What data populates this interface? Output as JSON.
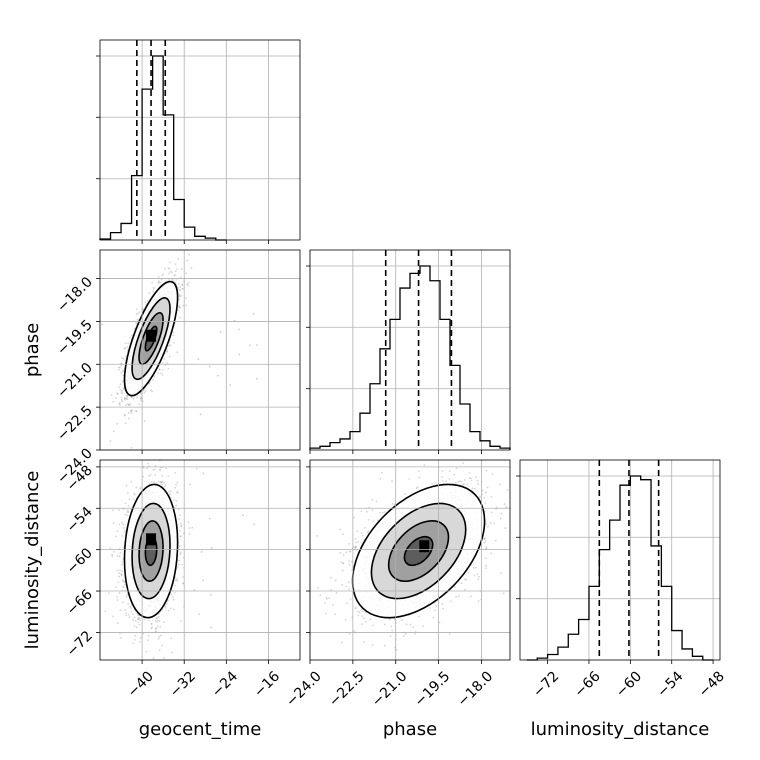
{
  "chart_data": {
    "type": "corner",
    "parameters": [
      "geocent_time",
      "phase",
      "luminosity_distance"
    ],
    "axes": {
      "geocent_time": {
        "label": "geocent_time",
        "range": [
          -48,
          -10
        ],
        "ticks": [
          -40,
          -32,
          -24,
          -16
        ],
        "tick_labels": [
          "−40",
          "−32",
          "−24",
          "−16"
        ]
      },
      "phase": {
        "label": "phase",
        "range": [
          -24.0,
          -17.0
        ],
        "ticks": [
          -24.0,
          -22.5,
          -21.0,
          -19.5,
          -18.0
        ],
        "tick_labels": [
          "−24.0",
          "−22.5",
          "−21.0",
          "−19.5",
          "−18.0"
        ]
      },
      "luminosity_distance": {
        "label": "luminosity_distance",
        "range": [
          -76,
          -47
        ],
        "ticks": [
          -72,
          -66,
          -60,
          -54,
          -48
        ],
        "tick_labels": [
          "−72",
          "−66",
          "−60",
          "−54",
          "−48"
        ]
      }
    },
    "marginals": [
      {
        "parameter": "geocent_time",
        "bin_edges": [
          -48,
          -46,
          -44,
          -42,
          -40,
          -38,
          -36,
          -34,
          -32,
          -30,
          -28,
          -26,
          -24
        ],
        "counts": [
          0.005,
          0.04,
          0.09,
          0.35,
          0.82,
          1.0,
          0.68,
          0.22,
          0.07,
          0.02,
          0.01,
          0
        ],
        "quantiles": [
          -41.0,
          -38.3,
          -35.6
        ]
      },
      {
        "parameter": "phase",
        "bin_edges": [
          -24.0,
          -23.65,
          -23.3,
          -22.95,
          -22.6,
          -22.25,
          -21.9,
          -21.55,
          -21.2,
          -20.85,
          -20.5,
          -20.15,
          -19.8,
          -19.45,
          -19.1,
          -18.75,
          -18.4,
          -18.05,
          -17.7,
          -17.35,
          -17.0
        ],
        "counts": [
          0.01,
          0.02,
          0.04,
          0.06,
          0.1,
          0.2,
          0.36,
          0.55,
          0.71,
          0.88,
          0.96,
          1.0,
          0.92,
          0.71,
          0.46,
          0.25,
          0.1,
          0.05,
          0.02,
          0.01
        ],
        "quantiles": [
          -21.35,
          -20.2,
          -19.05
        ]
      },
      {
        "parameter": "luminosity_distance",
        "bin_edges": [
          -75,
          -73.5,
          -72,
          -70.5,
          -69,
          -67.5,
          -66,
          -64.5,
          -63,
          -61.5,
          -60,
          -58.5,
          -57,
          -55.5,
          -54,
          -52.5,
          -51,
          -49.5,
          -48
        ],
        "counts": [
          0.0,
          0.01,
          0.03,
          0.07,
          0.14,
          0.22,
          0.4,
          0.6,
          0.76,
          0.95,
          1.0,
          0.98,
          0.62,
          0.4,
          0.16,
          0.06,
          0.02,
          0.0
        ],
        "quantiles": [
          -64.5,
          -60.2,
          -55.9
        ]
      }
    ],
    "joint": [
      {
        "x": "geocent_time",
        "y": "phase",
        "mean": [
          -38.3,
          -20.1
        ],
        "sd": [
          2.4,
          0.95
        ],
        "corr": 0.72,
        "peak": [
          -38.3,
          -20.0
        ]
      },
      {
        "x": "geocent_time",
        "y": "luminosity_distance",
        "mean": [
          -38.3,
          -60.2
        ],
        "sd": [
          2.4,
          4.6
        ],
        "corr": 0.12,
        "peak": [
          -38.3,
          -58.5
        ]
      },
      {
        "x": "phase",
        "y": "luminosity_distance",
        "mean": [
          -20.2,
          -60.2
        ],
        "sd": [
          1.1,
          4.6
        ],
        "corr": 0.45,
        "peak": [
          -20.0,
          -59.5
        ]
      }
    ],
    "grid": true,
    "density_colormap": "grey"
  }
}
